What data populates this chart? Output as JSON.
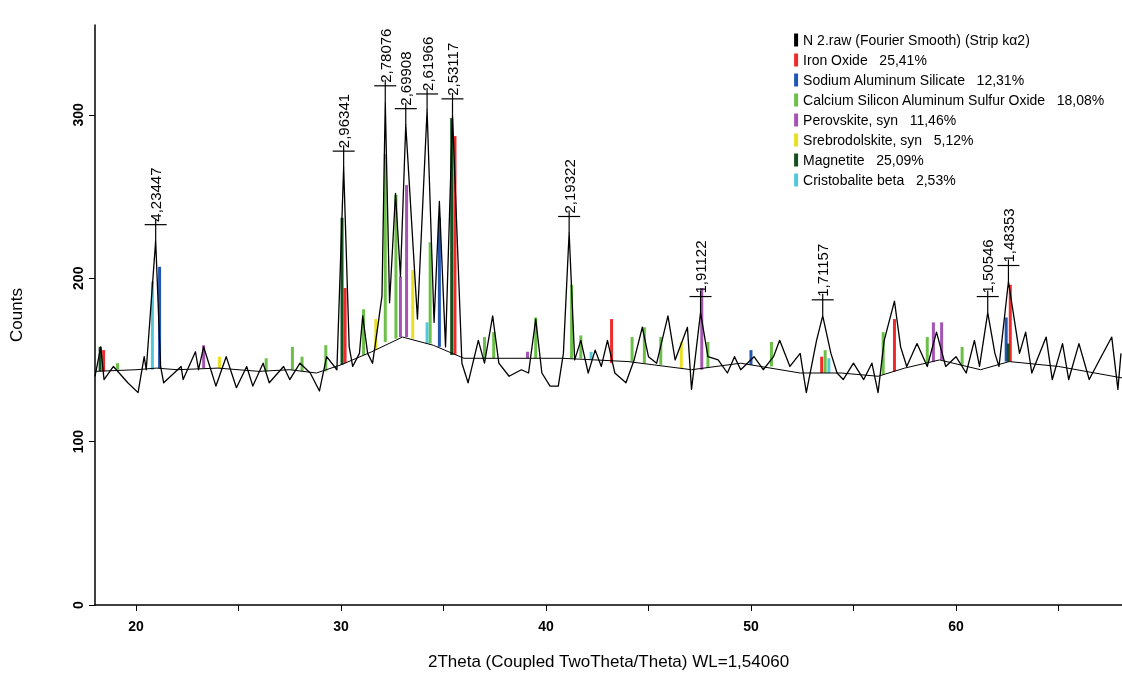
{
  "chart_data": {
    "type": "line",
    "xlabel": "2Theta (Coupled TwoTheta/Theta) WL=1,54060",
    "ylabel": "Counts",
    "xlim": [
      18,
      68.1
    ],
    "ylim": [
      0,
      355
    ],
    "xticks": [
      20,
      {
        "value": 25,
        "label": null
      },
      30,
      {
        "value": 35,
        "label": null
      },
      40,
      {
        "value": 45,
        "label": null
      },
      50,
      {
        "value": 55,
        "label": null
      },
      60,
      {
        "value": 65,
        "label": null
      }
    ],
    "yticks": [
      0,
      100,
      200,
      300
    ],
    "legend": "top right",
    "marker": "none",
    "annotations": [
      {
        "text": "4,23447",
        "x": 20.96,
        "y": 223
      },
      {
        "text": "2,96341",
        "x": 30.13,
        "y": 268
      },
      {
        "text": "2,78076",
        "x": 32.16,
        "y": 308
      },
      {
        "text": "2,69908",
        "x": 33.16,
        "y": 294
      },
      {
        "text": "2,61966",
        "x": 34.2,
        "y": 303
      },
      {
        "text": "2,53117",
        "x": 35.44,
        "y": 300
      },
      {
        "text": "2,19322",
        "x": 41.13,
        "y": 228
      },
      {
        "text": "1,91122",
        "x": 47.54,
        "y": 179
      },
      {
        "text": "1,71157",
        "x": 53.5,
        "y": 177
      },
      {
        "text": "1,50546",
        "x": 61.55,
        "y": 179
      },
      {
        "text": "1,48353",
        "x": 62.56,
        "y": 198
      }
    ],
    "series": [
      {
        "name": "N 2.raw (Fourier Smooth) (Strip kα2)",
        "color": "#000000",
        "x": [
          18.0,
          18.28,
          18.44,
          18.9,
          19.6,
          20.1,
          20.4,
          20.5,
          20.96,
          21.2,
          21.35,
          22.2,
          22.3,
          22.9,
          23.05,
          23.3,
          23.6,
          23.9,
          24.4,
          24.9,
          25.4,
          25.7,
          26.2,
          26.5,
          27.2,
          27.5,
          28.0,
          28.5,
          28.95,
          29.3,
          29.8,
          30.13,
          30.4,
          30.57,
          30.9,
          31.06,
          31.3,
          31.54,
          31.7,
          32.0,
          32.16,
          32.37,
          32.66,
          32.9,
          33.16,
          33.73,
          34.2,
          34.54,
          34.8,
          35.1,
          35.44,
          35.9,
          36.2,
          36.7,
          37.0,
          37.4,
          37.7,
          38.2,
          38.8,
          39.15,
          39.5,
          39.8,
          40.2,
          40.6,
          40.85,
          41.13,
          41.4,
          41.7,
          42.06,
          42.4,
          42.7,
          43.0,
          43.36,
          43.9,
          44.3,
          44.7,
          45.0,
          45.4,
          45.95,
          46.3,
          46.9,
          47.1,
          47.54,
          47.9,
          48.4,
          48.85,
          49.2,
          49.5,
          50.15,
          50.6,
          51.1,
          51.4,
          51.9,
          52.4,
          52.7,
          53.2,
          53.5,
          53.9,
          54.2,
          54.5,
          55.0,
          55.5,
          55.9,
          56.2,
          56.5,
          57.0,
          57.3,
          57.6,
          58.1,
          58.6,
          59.05,
          59.5,
          60.0,
          60.5,
          60.9,
          61.15,
          61.55,
          61.9,
          62.1,
          62.56,
          63.1,
          63.4,
          63.7,
          64.4,
          64.7,
          65.2,
          65.5,
          66.0,
          66.5,
          67.0,
          67.6,
          67.9,
          68.05
        ],
        "values": [
          140,
          158,
          138,
          146,
          136,
          130,
          152,
          144,
          223,
          146,
          136,
          146,
          138,
          155,
          144,
          158,
          146,
          134,
          152,
          133,
          146,
          134,
          148,
          136,
          146,
          138,
          148,
          142,
          131,
          152,
          144,
          268,
          158,
          146,
          154,
          177,
          154,
          148,
          162,
          189,
          308,
          185,
          252,
          201,
          294,
          175,
          303,
          173,
          247,
          158,
          300,
          148,
          136,
          162,
          148,
          177,
          148,
          140,
          144,
          142,
          175,
          142,
          134,
          134,
          154,
          228,
          150,
          162,
          142,
          156,
          146,
          162,
          142,
          136,
          150,
          170,
          152,
          148,
          177,
          150,
          170,
          132,
          179,
          152,
          150,
          142,
          152,
          144,
          152,
          144,
          152,
          162,
          146,
          154,
          130,
          162,
          177,
          154,
          142,
          138,
          148,
          138,
          148,
          130,
          162,
          186,
          158,
          146,
          160,
          146,
          167,
          146,
          152,
          142,
          162,
          146,
          179,
          154,
          146,
          198,
          154,
          167,
          142,
          164,
          138,
          160,
          138,
          160,
          138,
          150,
          164,
          132,
          154
        ]
      },
      {
        "name": "Iron Oxide   25,41%",
        "type": "bar",
        "color": "#ee2a2a",
        "x": [
          18.42,
          30.2,
          35.56,
          43.2,
          53.45,
          57.0,
          62.65
        ],
        "base": [
          143,
          148,
          153,
          148,
          142,
          143,
          149
        ],
        "values": [
          13,
          46,
          134,
          27,
          10,
          32,
          47
        ]
      },
      {
        "name": "Sodium Aluminum Silicate   12,31%",
        "type": "bar",
        "color": "#2255b0",
        "x": [
          21.15,
          34.8,
          50.0,
          62.45
        ],
        "base": [
          145,
          158,
          147,
          149
        ],
        "values": [
          62,
          79,
          9,
          27
        ]
      },
      {
        "name": "Calcium Silicon Aluminum Sulfur Oxide   18,08%",
        "type": "bar",
        "color": "#6cc04a",
        "x": [
          19.1,
          26.35,
          27.63,
          28.1,
          29.26,
          31.1,
          32.16,
          32.68,
          34.35,
          37.0,
          37.45,
          39.5,
          41.25,
          41.7,
          44.2,
          44.8,
          45.6,
          47.9,
          51.0,
          53.62,
          56.45,
          58.6,
          60.3
        ],
        "base": [
          144,
          143,
          144,
          143,
          143,
          153,
          161,
          163,
          160,
          151,
          151,
          151,
          151,
          151,
          149,
          148,
          147,
          145,
          146,
          142,
          141,
          148,
          147
        ],
        "values": [
          4,
          8,
          14,
          9,
          16,
          28,
          115,
          88,
          62,
          13,
          16,
          25,
          45,
          14,
          15,
          22,
          17,
          16,
          15,
          14,
          26,
          16,
          11
        ]
      },
      {
        "name": "Perovskite, syn   11,46%",
        "type": "bar",
        "color": "#a455b4",
        "x": [
          23.3,
          32.9,
          33.2,
          39.1,
          47.6,
          58.9,
          59.3
        ],
        "base": [
          145,
          164,
          164,
          151,
          144,
          149,
          150
        ],
        "values": [
          14,
          37,
          93,
          4,
          50,
          24,
          23
        ]
      },
      {
        "name": "Srebrodolskite, syn   5,12%",
        "type": "bar",
        "color": "#e8e020",
        "x": [
          24.07,
          31.7,
          33.5,
          46.6
        ],
        "base": [
          145,
          156,
          163,
          145
        ],
        "values": [
          7,
          19,
          42,
          16
        ]
      },
      {
        "name": "Magnetite   25,09%",
        "type": "bar",
        "color": "#14501e",
        "x": [
          18.25,
          30.05,
          35.4,
          62.55
        ],
        "base": [
          143,
          147,
          153,
          149
        ],
        "values": [
          15,
          90,
          145,
          11
        ]
      },
      {
        "name": "Cristobalite beta   2,53%",
        "type": "bar",
        "color": "#55c8d8",
        "x": [
          20.8,
          34.2,
          42.2,
          53.8
        ],
        "base": [
          144,
          160,
          150,
          142
        ],
        "values": [
          54,
          13,
          5,
          9
        ]
      },
      {
        "color": "#000000",
        "x": [
          18,
          20,
          21,
          22,
          24,
          26,
          27.5,
          28.8,
          30,
          31.5,
          33,
          34.5,
          36,
          38,
          40.8,
          44,
          47.1,
          49.5,
          52.4,
          54.4,
          56.2,
          57.5,
          59.2,
          61.2,
          62.6,
          65,
          68.1
        ],
        "values": [
          143,
          144,
          145,
          144,
          145,
          143,
          144,
          142,
          147,
          155,
          164,
          159,
          151,
          151,
          151,
          149,
          144,
          148,
          142,
          142,
          140,
          145,
          150,
          144,
          149,
          146,
          139
        ]
      }
    ]
  }
}
